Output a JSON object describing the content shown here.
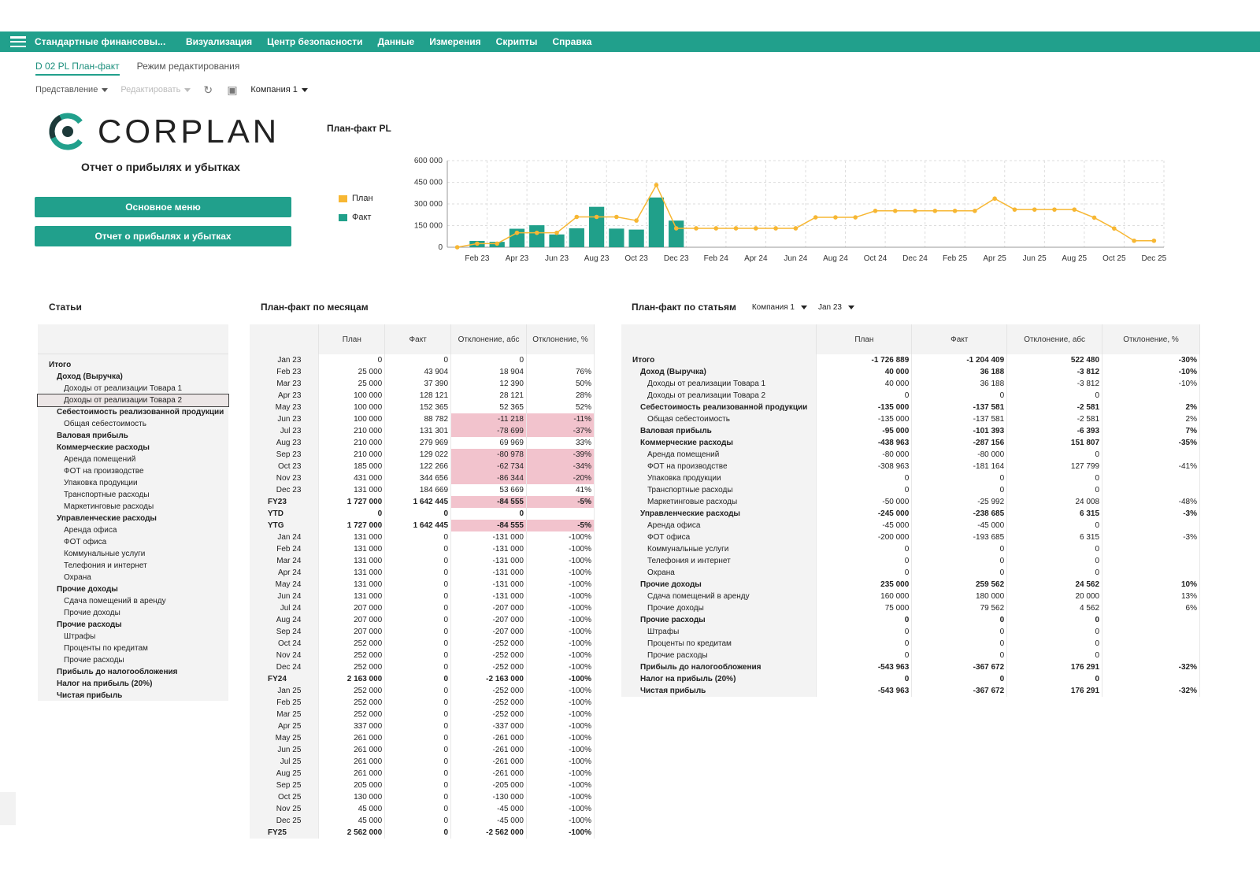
{
  "app": {
    "title": "Стандартные финансовы...",
    "menu": [
      "Визуализация",
      "Центр безопасности",
      "Данные",
      "Измерения",
      "Скрипты",
      "Справка"
    ]
  },
  "tabs": {
    "active": "D 02 PL План-факт",
    "inactive": "Режим редактирования"
  },
  "toolbar": {
    "view": "Представление",
    "edit": "Редактировать",
    "company": "Компания 1"
  },
  "logo": {
    "text": "CORPLAN"
  },
  "page": {
    "subtitle": "Отчет о прибылях и убытках",
    "btn_main": "Основное меню",
    "btn_report": "Отчет о прибылях и убытках"
  },
  "colors": {
    "accent": "#21a08c",
    "plan": "#f7b733",
    "fact": "#20a08a",
    "negative": "#f2c3cd"
  },
  "chart_data": {
    "type": "bar+line",
    "title": "План-факт PL",
    "x": [
      "Jan 23",
      "Feb 23",
      "Mar 23",
      "Apr 23",
      "May 23",
      "Jun 23",
      "Jul 23",
      "Aug 23",
      "Sep 23",
      "Oct 23",
      "Nov 23",
      "Dec 23",
      "Jan 24",
      "Feb 24",
      "Mar 24",
      "Apr 24",
      "May 24",
      "Jun 24",
      "Jul 24",
      "Aug 24",
      "Sep 24",
      "Oct 24",
      "Nov 24",
      "Dec 24",
      "Jan 25",
      "Feb 25",
      "Mar 25",
      "Apr 25",
      "May 25",
      "Jun 25",
      "Jul 25",
      "Aug 25",
      "Sep 25",
      "Oct 25",
      "Nov 25",
      "Dec 25"
    ],
    "xticks": [
      "Feb 23",
      "Apr 23",
      "Jun 23",
      "Aug 23",
      "Oct 23",
      "Dec 23",
      "Feb 24",
      "Apr 24",
      "Jun 24",
      "Aug 24",
      "Oct 24",
      "Dec 24",
      "Feb 25",
      "Apr 25",
      "Jun 25",
      "Aug 25",
      "Oct 25",
      "Dec 25"
    ],
    "yticks": [
      "0",
      "150 000",
      "300 000",
      "450 000",
      "600 000"
    ],
    "ylim": [
      0,
      600000
    ],
    "series": [
      {
        "name": "План",
        "kind": "line",
        "values": [
          0,
          25000,
          25000,
          100000,
          100000,
          100000,
          210000,
          210000,
          210000,
          185000,
          431000,
          131000,
          131000,
          131000,
          131000,
          131000,
          131000,
          131000,
          207000,
          207000,
          207000,
          252000,
          252000,
          252000,
          252000,
          252000,
          252000,
          337000,
          261000,
          261000,
          261000,
          261000,
          205000,
          130000,
          45000,
          45000
        ]
      },
      {
        "name": "Факт",
        "kind": "bar",
        "values": [
          0,
          43904,
          37390,
          128121,
          152365,
          88782,
          131301,
          279969,
          129022,
          122266,
          344656,
          184669,
          0,
          0,
          0,
          0,
          0,
          0,
          0,
          0,
          0,
          0,
          0,
          0,
          0,
          0,
          0,
          0,
          0,
          0,
          0,
          0,
          0,
          0,
          0,
          0
        ]
      }
    ],
    "grid": true,
    "legend": "left"
  },
  "articles": {
    "title": "Статьи",
    "rows": [
      {
        "t": "Итого",
        "b": 1,
        "l": 0
      },
      {
        "t": "Доход (Выручка)",
        "b": 1,
        "l": 1
      },
      {
        "t": "Доходы от реализации Товара 1",
        "b": 0,
        "l": 2
      },
      {
        "t": "Доходы от реализации Товара 2",
        "b": 0,
        "l": 2
      },
      {
        "t": "Себестоимость реализованной продукции",
        "b": 1,
        "l": 1
      },
      {
        "t": "Общая себестоимость",
        "b": 0,
        "l": 2
      },
      {
        "t": "Валовая прибыль",
        "b": 1,
        "l": 1
      },
      {
        "t": "Коммерческие расходы",
        "b": 1,
        "l": 1
      },
      {
        "t": "Аренда помещений",
        "b": 0,
        "l": 2
      },
      {
        "t": "ФОТ на производстве",
        "b": 0,
        "l": 2
      },
      {
        "t": "Упаковка продукции",
        "b": 0,
        "l": 2
      },
      {
        "t": "Транспортные расходы",
        "b": 0,
        "l": 2
      },
      {
        "t": "Маркетинговые расходы",
        "b": 0,
        "l": 2
      },
      {
        "t": "Управленческие расходы",
        "b": 1,
        "l": 1
      },
      {
        "t": "Аренда офиса",
        "b": 0,
        "l": 2
      },
      {
        "t": "ФОТ офиса",
        "b": 0,
        "l": 2
      },
      {
        "t": "Коммунальные услуги",
        "b": 0,
        "l": 2
      },
      {
        "t": "Телефония и интернет",
        "b": 0,
        "l": 2
      },
      {
        "t": "Охрана",
        "b": 0,
        "l": 2
      },
      {
        "t": "Прочие доходы",
        "b": 1,
        "l": 1
      },
      {
        "t": "Сдача помещений в аренду",
        "b": 0,
        "l": 2
      },
      {
        "t": "Прочие доходы",
        "b": 0,
        "l": 2
      },
      {
        "t": "Прочие расходы",
        "b": 1,
        "l": 1
      },
      {
        "t": "Штрафы",
        "b": 0,
        "l": 2
      },
      {
        "t": "Проценты по кредитам",
        "b": 0,
        "l": 2
      },
      {
        "t": "Прочие расходы",
        "b": 0,
        "l": 2
      },
      {
        "t": "Прибыль до налогообложения",
        "b": 1,
        "l": 1
      },
      {
        "t": "Налог на прибыль (20%)",
        "b": 1,
        "l": 1
      },
      {
        "t": "Чистая прибыль",
        "b": 1,
        "l": 1
      }
    ]
  },
  "monthly": {
    "title": "План-факт по месяцам",
    "headers": [
      "План",
      "Факт",
      "Отклонение, абс",
      "Отклонение, %"
    ],
    "rows": [
      [
        "Jan 23",
        "0",
        "0",
        "0",
        "",
        0,
        0
      ],
      [
        "Feb 23",
        "25 000",
        "43 904",
        "18 904",
        "76%",
        0,
        0
      ],
      [
        "Mar 23",
        "25 000",
        "37 390",
        "12 390",
        "50%",
        0,
        0
      ],
      [
        "Apr 23",
        "100 000",
        "128 121",
        "28 121",
        "28%",
        0,
        0
      ],
      [
        "May 23",
        "100 000",
        "152 365",
        "52 365",
        "52%",
        0,
        0
      ],
      [
        "Jun 23",
        "100 000",
        "88 782",
        "-11 218",
        "-11%",
        0,
        1
      ],
      [
        "Jul 23",
        "210 000",
        "131 301",
        "-78 699",
        "-37%",
        0,
        1
      ],
      [
        "Aug 23",
        "210 000",
        "279 969",
        "69 969",
        "33%",
        0,
        0
      ],
      [
        "Sep 23",
        "210 000",
        "129 022",
        "-80 978",
        "-39%",
        0,
        1
      ],
      [
        "Oct 23",
        "185 000",
        "122 266",
        "-62 734",
        "-34%",
        0,
        1
      ],
      [
        "Nov 23",
        "431 000",
        "344 656",
        "-86 344",
        "-20%",
        0,
        1
      ],
      [
        "Dec 23",
        "131 000",
        "184 669",
        "53 669",
        "41%",
        0,
        0
      ],
      [
        "FY23",
        "1 727 000",
        "1 642 445",
        "-84 555",
        "-5%",
        1,
        1
      ],
      [
        "YTD",
        "0",
        "0",
        "0",
        "",
        1,
        0
      ],
      [
        "YTG",
        "1 727 000",
        "1 642 445",
        "-84 555",
        "-5%",
        1,
        1
      ],
      [
        "Jan 24",
        "131 000",
        "0",
        "-131 000",
        "-100%",
        0,
        0
      ],
      [
        "Feb 24",
        "131 000",
        "0",
        "-131 000",
        "-100%",
        0,
        0
      ],
      [
        "Mar 24",
        "131 000",
        "0",
        "-131 000",
        "-100%",
        0,
        0
      ],
      [
        "Apr 24",
        "131 000",
        "0",
        "-131 000",
        "-100%",
        0,
        0
      ],
      [
        "May 24",
        "131 000",
        "0",
        "-131 000",
        "-100%",
        0,
        0
      ],
      [
        "Jun 24",
        "131 000",
        "0",
        "-131 000",
        "-100%",
        0,
        0
      ],
      [
        "Jul 24",
        "207 000",
        "0",
        "-207 000",
        "-100%",
        0,
        0
      ],
      [
        "Aug 24",
        "207 000",
        "0",
        "-207 000",
        "-100%",
        0,
        0
      ],
      [
        "Sep 24",
        "207 000",
        "0",
        "-207 000",
        "-100%",
        0,
        0
      ],
      [
        "Oct 24",
        "252 000",
        "0",
        "-252 000",
        "-100%",
        0,
        0
      ],
      [
        "Nov 24",
        "252 000",
        "0",
        "-252 000",
        "-100%",
        0,
        0
      ],
      [
        "Dec 24",
        "252 000",
        "0",
        "-252 000",
        "-100%",
        0,
        0
      ],
      [
        "FY24",
        "2 163 000",
        "0",
        "-2 163 000",
        "-100%",
        1,
        0
      ],
      [
        "Jan 25",
        "252 000",
        "0",
        "-252 000",
        "-100%",
        0,
        0
      ],
      [
        "Feb 25",
        "252 000",
        "0",
        "-252 000",
        "-100%",
        0,
        0
      ],
      [
        "Mar 25",
        "252 000",
        "0",
        "-252 000",
        "-100%",
        0,
        0
      ],
      [
        "Apr 25",
        "337 000",
        "0",
        "-337 000",
        "-100%",
        0,
        0
      ],
      [
        "May 25",
        "261 000",
        "0",
        "-261 000",
        "-100%",
        0,
        0
      ],
      [
        "Jun 25",
        "261 000",
        "0",
        "-261 000",
        "-100%",
        0,
        0
      ],
      [
        "Jul 25",
        "261 000",
        "0",
        "-261 000",
        "-100%",
        0,
        0
      ],
      [
        "Aug 25",
        "261 000",
        "0",
        "-261 000",
        "-100%",
        0,
        0
      ],
      [
        "Sep 25",
        "205 000",
        "0",
        "-205 000",
        "-100%",
        0,
        0
      ],
      [
        "Oct 25",
        "130 000",
        "0",
        "-130 000",
        "-100%",
        0,
        0
      ],
      [
        "Nov 25",
        "45 000",
        "0",
        "-45 000",
        "-100%",
        0,
        0
      ],
      [
        "Dec 25",
        "45 000",
        "0",
        "-45 000",
        "-100%",
        0,
        0
      ],
      [
        "FY25",
        "2 562 000",
        "0",
        "-2 562 000",
        "-100%",
        1,
        0
      ]
    ]
  },
  "byarticle": {
    "title": "План-факт по статьям",
    "company": "Компания 1",
    "period": "Jan 23",
    "headers": [
      "План",
      "Факт",
      "Отклонение, абс",
      "Отклонение, %"
    ],
    "rows": [
      [
        "Итого",
        "-1 726 889",
        "-1 204 409",
        "522 480",
        "-30%",
        1,
        0
      ],
      [
        "Доход (Выручка)",
        "40 000",
        "36 188",
        "-3 812",
        "-10%",
        1,
        1
      ],
      [
        "Доходы от реализации Товара 1",
        "40 000",
        "36 188",
        "-3 812",
        "-10%",
        0,
        2
      ],
      [
        "Доходы от реализации Товара 2",
        "0",
        "0",
        "0",
        "",
        0,
        2
      ],
      [
        "Себестоимость реализованной продукции",
        "-135 000",
        "-137 581",
        "-2 581",
        "2%",
        1,
        1
      ],
      [
        "Общая себестоимость",
        "-135 000",
        "-137 581",
        "-2 581",
        "2%",
        0,
        2
      ],
      [
        "Валовая прибыль",
        "-95 000",
        "-101 393",
        "-6 393",
        "7%",
        1,
        1
      ],
      [
        "Коммерческие расходы",
        "-438 963",
        "-287 156",
        "151 807",
        "-35%",
        1,
        1
      ],
      [
        "Аренда помещений",
        "-80 000",
        "-80 000",
        "0",
        "",
        0,
        2
      ],
      [
        "ФОТ на производстве",
        "-308 963",
        "-181 164",
        "127 799",
        "-41%",
        0,
        2
      ],
      [
        "Упаковка продукции",
        "0",
        "0",
        "0",
        "",
        0,
        2
      ],
      [
        "Транспортные расходы",
        "0",
        "0",
        "0",
        "",
        0,
        2
      ],
      [
        "Маркетинговые расходы",
        "-50 000",
        "-25 992",
        "24 008",
        "-48%",
        0,
        2
      ],
      [
        "Управленческие расходы",
        "-245 000",
        "-238 685",
        "6 315",
        "-3%",
        1,
        1
      ],
      [
        "Аренда офиса",
        "-45 000",
        "-45 000",
        "0",
        "",
        0,
        2
      ],
      [
        "ФОТ офиса",
        "-200 000",
        "-193 685",
        "6 315",
        "-3%",
        0,
        2
      ],
      [
        "Коммунальные услуги",
        "0",
        "0",
        "0",
        "",
        0,
        2
      ],
      [
        "Телефония и интернет",
        "0",
        "0",
        "0",
        "",
        0,
        2
      ],
      [
        "Охрана",
        "0",
        "0",
        "0",
        "",
        0,
        2
      ],
      [
        "Прочие доходы",
        "235 000",
        "259 562",
        "24 562",
        "10%",
        1,
        1
      ],
      [
        "Сдача помещений в аренду",
        "160 000",
        "180 000",
        "20 000",
        "13%",
        0,
        2
      ],
      [
        "Прочие доходы",
        "75 000",
        "79 562",
        "4 562",
        "6%",
        0,
        2
      ],
      [
        "Прочие расходы",
        "0",
        "0",
        "0",
        "",
        1,
        1
      ],
      [
        "Штрафы",
        "0",
        "0",
        "0",
        "",
        0,
        2
      ],
      [
        "Проценты по кредитам",
        "0",
        "0",
        "0",
        "",
        0,
        2
      ],
      [
        "Прочие расходы",
        "0",
        "0",
        "0",
        "",
        0,
        2
      ],
      [
        "Прибыль до налогообложения",
        "-543 963",
        "-367 672",
        "176 291",
        "-32%",
        1,
        1
      ],
      [
        "Налог на прибыль (20%)",
        "0",
        "0",
        "0",
        "",
        1,
        1
      ],
      [
        "Чистая прибыль",
        "-543 963",
        "-367 672",
        "176 291",
        "-32%",
        1,
        1
      ]
    ]
  }
}
